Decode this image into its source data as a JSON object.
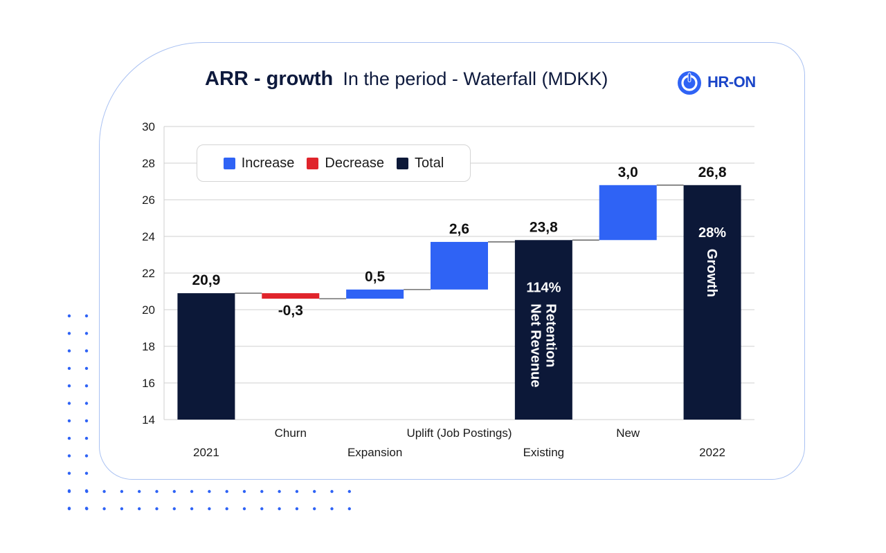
{
  "title": {
    "main": "ARR - growth",
    "sub": "In the period - Waterfall (MDKK)"
  },
  "logo": {
    "text": "HR-ON",
    "icon": "power-icon"
  },
  "colors": {
    "increase": "#2f63f5",
    "decrease": "#e0242b",
    "total": "#0c1838",
    "grid": "#cfcfcf",
    "connector": "#555555",
    "card_border": "#a9c1f2",
    "dots": "#2f63f5"
  },
  "legend": {
    "items": [
      {
        "label": "Increase",
        "kind": "increase"
      },
      {
        "label": "Decrease",
        "kind": "decrease"
      },
      {
        "label": "Total",
        "kind": "total"
      }
    ]
  },
  "chart_data": {
    "type": "bar",
    "subtype": "waterfall",
    "title": "ARR - growth In the period - Waterfall (MDKK)",
    "categories": [
      "2021",
      "Churn",
      "Expansion",
      "Uplift (Job Postings)",
      "Existing",
      "New",
      "2022"
    ],
    "values": [
      20.9,
      -0.3,
      0.5,
      2.6,
      23.8,
      3.0,
      26.8
    ],
    "kinds": [
      "total",
      "decrease",
      "increase",
      "increase",
      "total",
      "increase",
      "total"
    ],
    "value_labels": [
      "20,9",
      "-0,3",
      "0,5",
      "2,6",
      "23,8",
      "3,0",
      "26,8"
    ],
    "ylim": [
      14,
      30
    ],
    "yticks": [
      14,
      16,
      18,
      20,
      22,
      24,
      26,
      28,
      30
    ],
    "grid": true,
    "legend_position": "top-left",
    "annotations": [
      {
        "category": "Existing",
        "value_text": "114%",
        "label_text": "Net Revenue Retention"
      },
      {
        "category": "2022",
        "value_text": "28%",
        "label_text": "Growth"
      }
    ]
  }
}
